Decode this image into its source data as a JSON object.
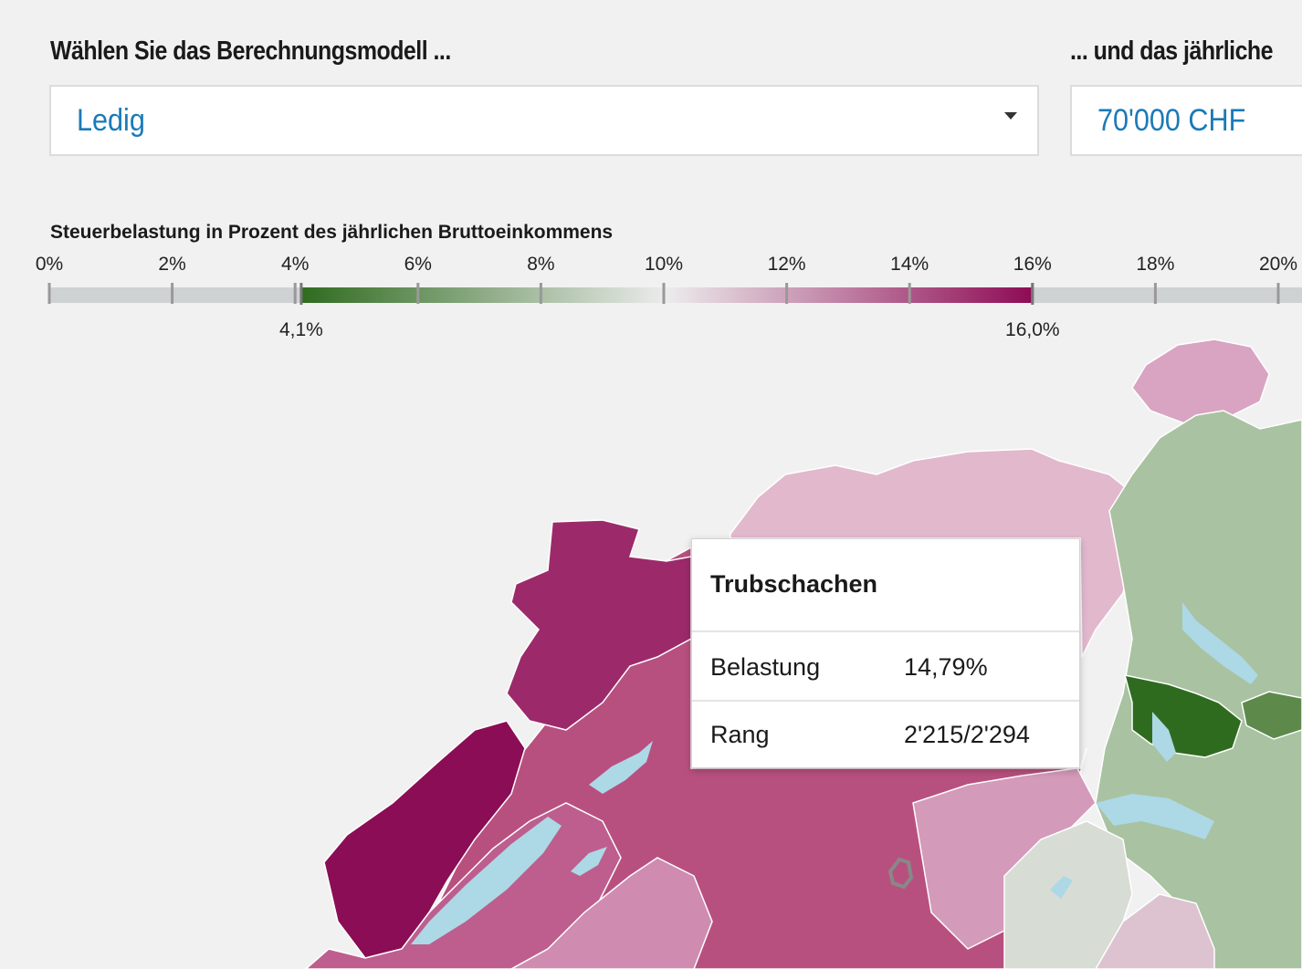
{
  "controls": {
    "model_label": "Wählen Sie das Berechnungsmodell ...",
    "model_value": "Ledig",
    "income_label": "... und das jährliche",
    "income_value": "70'000 CHF"
  },
  "legend": {
    "title": "Steuerbelastung in Prozent des jährlichen Bruttoeinkommens",
    "ticks": [
      "0%",
      "2%",
      "4%",
      "6%",
      "8%",
      "10%",
      "12%",
      "14%",
      "16%",
      "18%",
      "20%"
    ],
    "min_value": 4.1,
    "max_value": 16.0,
    "min_label": "4,1%",
    "max_label": "16,0%",
    "color_low": "#2f6b1f",
    "color_mid": "#ececec",
    "color_high": "#8e0b55"
  },
  "tooltip": {
    "title": "Trubschachen",
    "rows": [
      {
        "key": "Belastung",
        "value": "14,79%"
      },
      {
        "key": "Rang",
        "value": "2'215/2'294"
      }
    ]
  },
  "colors": {
    "lake": "#add8e6",
    "background": "#f1f1f1"
  }
}
